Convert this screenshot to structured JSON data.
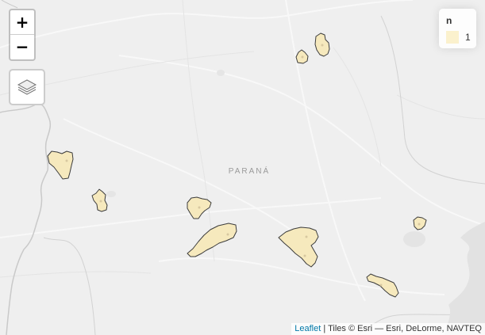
{
  "map": {
    "region_label": "PARANÁ",
    "background_color": "#efefef",
    "polygon_fill": "#f6e9bd",
    "polygon_stroke": "#3c3c3c"
  },
  "zoom": {
    "in_label": "+",
    "out_label": "−"
  },
  "layers": {
    "icon": "layers-icon"
  },
  "legend": {
    "title": "n",
    "items": [
      {
        "label": "1",
        "color": "#fbf0c8"
      }
    ]
  },
  "attribution": {
    "link": "Leaflet",
    "separator": " | ",
    "text": "Tiles © Esri — Esri, DeLorme, NAVTEQ"
  }
}
